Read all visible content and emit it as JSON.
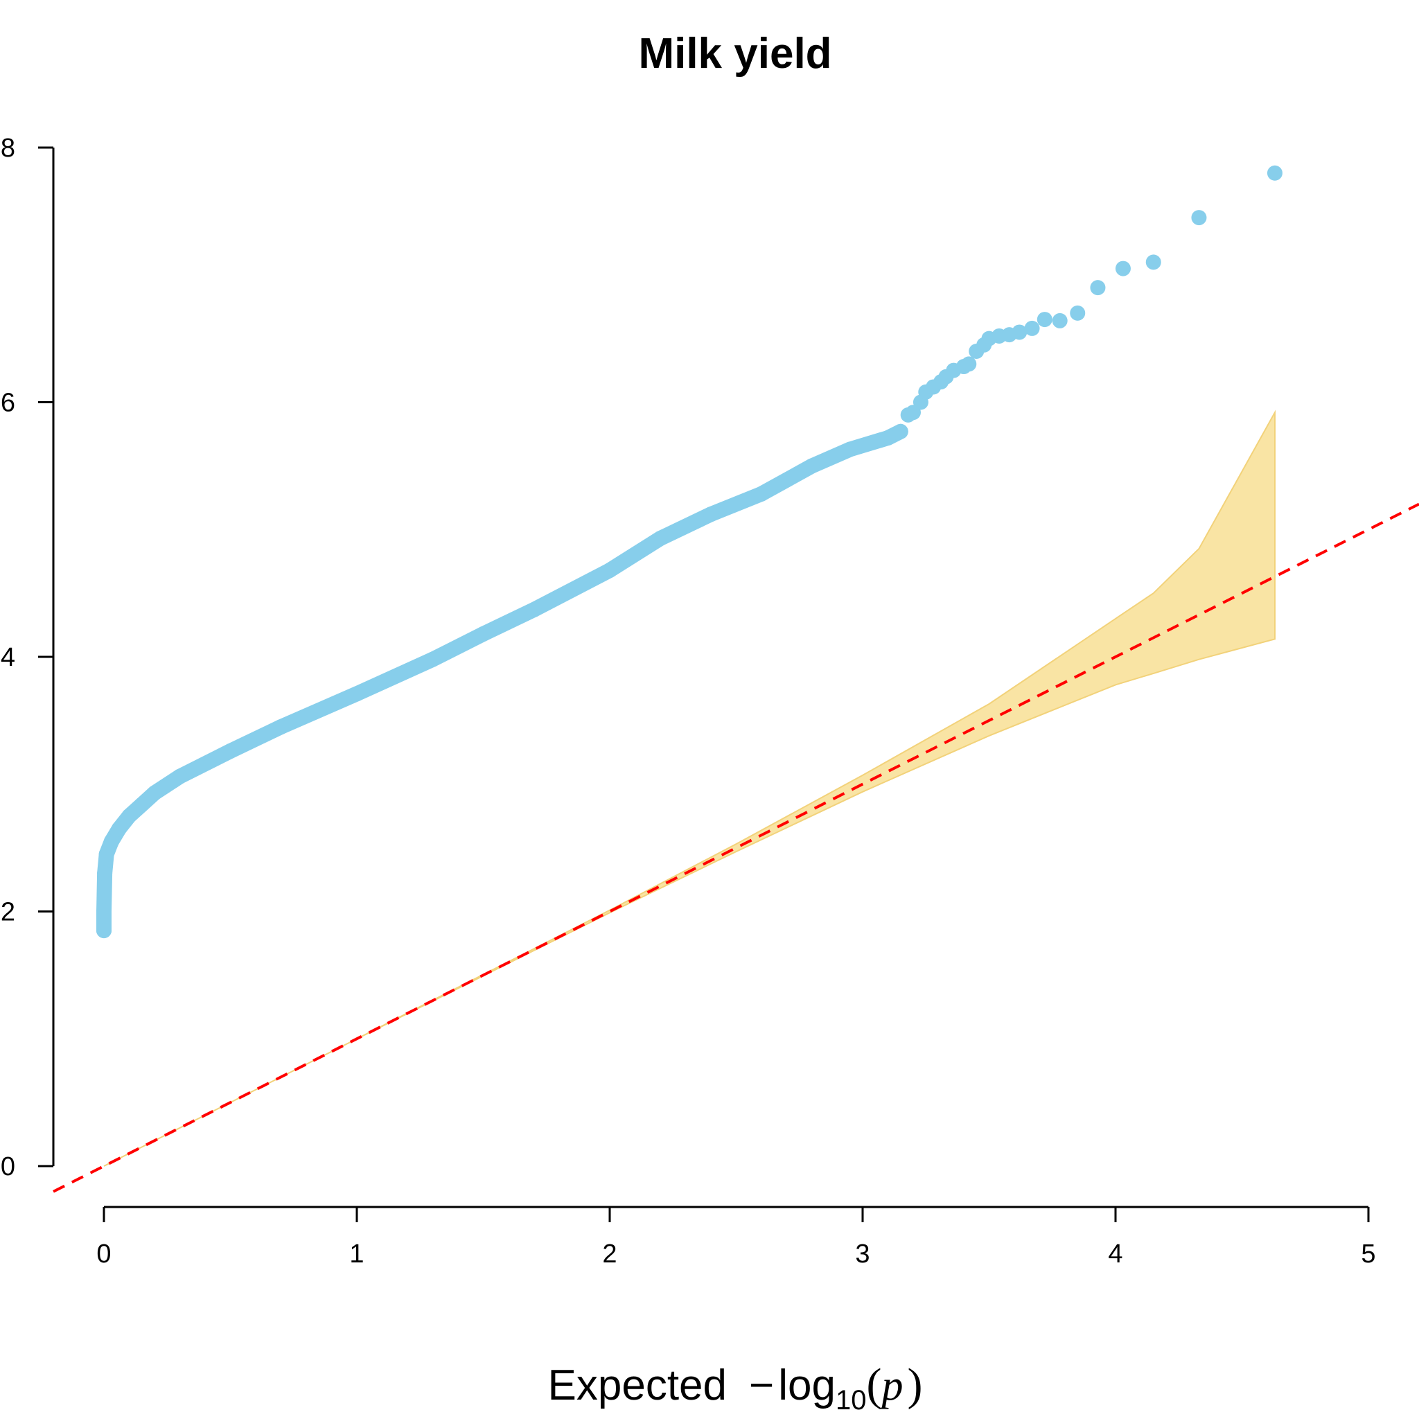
{
  "chart_data": {
    "type": "scatter",
    "title": "Milk yield",
    "xlabel": {
      "prefix": "Expected",
      "minus": "−",
      "log": "log",
      "base": "10",
      "open": "(",
      "var": "p",
      "close": ")"
    },
    "ylabel": "",
    "xlim": [
      0,
      5
    ],
    "ylim": [
      0,
      8
    ],
    "x_ticks": [
      0,
      1,
      2,
      3,
      4,
      5
    ],
    "y_ticks": [
      0,
      2,
      4,
      6,
      8
    ],
    "grid": false,
    "colors": {
      "points": "#87ceeb",
      "band_fill": "#f9e4a4",
      "band_edge": "#f2d27a",
      "reference_line": "#ff0000",
      "axis": "#000000"
    },
    "confidence_band": {
      "x": [
        0,
        1,
        2,
        2.5,
        3,
        3.5,
        4,
        4.15,
        4.33,
        4.63
      ],
      "lower": [
        0,
        1,
        1.99,
        2.47,
        2.94,
        3.38,
        3.78,
        3.87,
        3.98,
        4.14
      ],
      "upper": [
        0,
        1,
        2.01,
        2.53,
        3.07,
        3.63,
        4.3,
        4.5,
        4.85,
        5.92
      ]
    },
    "reference_line": {
      "slope": 1,
      "intercept": 0,
      "x_range": [
        -0.2,
        5.2
      ],
      "style": "dashed"
    },
    "curve": {
      "x": [
        0,
        0,
        0.003,
        0.01,
        0.03,
        0.06,
        0.1,
        0.15,
        0.2,
        0.3,
        0.5,
        0.7,
        1,
        1.3,
        1.5,
        1.7,
        2,
        2.2,
        2.4,
        2.6,
        2.8,
        2.95,
        3.1,
        3.15
      ],
      "y": [
        1.85,
        2.0,
        2.3,
        2.45,
        2.55,
        2.65,
        2.75,
        2.84,
        2.93,
        3.06,
        3.26,
        3.45,
        3.71,
        3.98,
        4.18,
        4.37,
        4.68,
        4.93,
        5.12,
        5.28,
        5.5,
        5.63,
        5.72,
        5.77
      ]
    },
    "points": {
      "x": [
        3.18,
        3.2,
        3.23,
        3.25,
        3.28,
        3.31,
        3.33,
        3.36,
        3.4,
        3.42,
        3.45,
        3.48,
        3.5,
        3.54,
        3.58,
        3.62,
        3.67,
        3.72,
        3.78,
        3.85,
        3.93,
        4.03,
        4.15,
        4.33,
        4.63
      ],
      "y": [
        5.9,
        5.92,
        6.0,
        6.08,
        6.12,
        6.16,
        6.2,
        6.25,
        6.28,
        6.3,
        6.4,
        6.45,
        6.5,
        6.52,
        6.53,
        6.55,
        6.58,
        6.65,
        6.64,
        6.7,
        6.9,
        7.05,
        7.1,
        7.45,
        7.8
      ]
    }
  }
}
